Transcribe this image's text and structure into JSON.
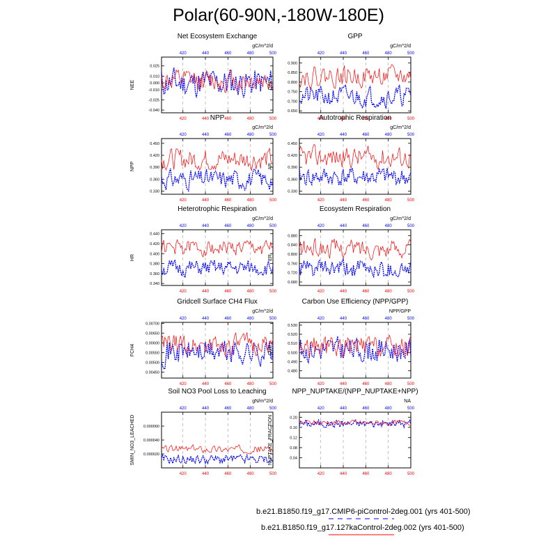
{
  "figure_title": "Polar(60-90N,-180W-180E)",
  "colors": {
    "case1": "#0000ff",
    "case2": "#ff0000",
    "grid": "#999999"
  },
  "legend": [
    {
      "label": "b.e21.B1850.f19_g17.CMIP6-piControl-2deg.001 (yrs 401-500)",
      "color": "#0000ff",
      "style": "dashed"
    },
    {
      "label": "b.e21.B1850.f19_g17.127kaControl-2deg.002 (yrs 401-500)",
      "color": "#ff0000",
      "style": "solid"
    }
  ],
  "chart_data": [
    {
      "type": "line",
      "title": "Net Ecosystem Exchange",
      "units": "gC/m^2/d",
      "ylabel": "NEE",
      "xlim": [
        401,
        500
      ],
      "ylim": [
        -0.044,
        0.038
      ],
      "yticks": [
        -0.04,
        -0.025,
        -0.01,
        0.0,
        0.01,
        0.025
      ],
      "ytick_labels": [
        "-0.040",
        "-0.025",
        "-0.010",
        "0.000",
        "0.010",
        "0.025"
      ],
      "xticks": [
        420,
        440,
        460,
        480,
        500
      ],
      "series": [
        {
          "name": "CMIP6-piControl",
          "mean": 0.0,
          "amp": 0.016,
          "seed": 11
        },
        {
          "name": "127kaControl",
          "mean": 0.003,
          "amp": 0.012,
          "seed": 12
        }
      ]
    },
    {
      "type": "line",
      "title": "GPP",
      "units": "gC/m^2/d",
      "ylabel": "GPP",
      "xlim": [
        401,
        500
      ],
      "ylim": [
        0.64,
        0.93
      ],
      "yticks": [
        0.65,
        0.7,
        0.75,
        0.8,
        0.85,
        0.9
      ],
      "ytick_labels": [
        "0.650",
        "0.700",
        "0.750",
        "0.800",
        "0.850",
        "0.900"
      ],
      "xticks": [
        420,
        440,
        460,
        480,
        500
      ],
      "series": [
        {
          "name": "CMIP6-piControl",
          "mean": 0.725,
          "amp": 0.04,
          "seed": 21
        },
        {
          "name": "127kaControl",
          "mean": 0.83,
          "amp": 0.04,
          "seed": 22
        }
      ]
    },
    {
      "type": "line",
      "title": "NPP",
      "units": "gC/m^2/d",
      "ylabel": "NPP",
      "xlim": [
        401,
        500
      ],
      "ylim": [
        0.322,
        0.462
      ],
      "yticks": [
        0.33,
        0.36,
        0.39,
        0.42,
        0.45
      ],
      "ytick_labels": [
        "0.330",
        "0.360",
        "0.390",
        "0.420",
        "0.450"
      ],
      "xticks": [
        420,
        440,
        460,
        480,
        500
      ],
      "series": [
        {
          "name": "CMIP6-piControl",
          "mean": 0.36,
          "amp": 0.018,
          "seed": 31
        },
        {
          "name": "127kaControl",
          "mean": 0.41,
          "amp": 0.02,
          "seed": 32
        }
      ]
    },
    {
      "type": "line",
      "title": "Autotrophic Respiration",
      "units": "gC/m^2/d",
      "ylabel": "AR",
      "xlim": [
        401,
        500
      ],
      "ylim": [
        0.322,
        0.462
      ],
      "yticks": [
        0.33,
        0.36,
        0.39,
        0.42,
        0.45
      ],
      "ytick_labels": [
        "0.330",
        "0.360",
        "0.390",
        "0.420",
        "0.450"
      ],
      "xticks": [
        420,
        440,
        460,
        480,
        500
      ],
      "series": [
        {
          "name": "CMIP6-piControl",
          "mean": 0.365,
          "amp": 0.018,
          "seed": 41
        },
        {
          "name": "127kaControl",
          "mean": 0.415,
          "amp": 0.02,
          "seed": 42
        }
      ]
    },
    {
      "type": "line",
      "title": "Heterotrophic Respiration",
      "units": "gC/m^2/d",
      "ylabel": "HR",
      "xlim": [
        401,
        500
      ],
      "ylim": [
        0.336,
        0.448
      ],
      "yticks": [
        0.34,
        0.36,
        0.38,
        0.4,
        0.42,
        0.44
      ],
      "ytick_labels": [
        "0.340",
        "0.360",
        "0.380",
        "0.400",
        "0.420",
        "0.440"
      ],
      "xticks": [
        420,
        440,
        460,
        480,
        500
      ],
      "series": [
        {
          "name": "CMIP6-piControl",
          "mean": 0.37,
          "amp": 0.012,
          "seed": 51
        },
        {
          "name": "127kaControl",
          "mean": 0.412,
          "amp": 0.012,
          "seed": 52
        }
      ]
    },
    {
      "type": "line",
      "title": "Ecosystem Respiration",
      "units": "gC/m^2/d",
      "ylabel": "ER",
      "xlim": [
        401,
        500
      ],
      "ylim": [
        0.665,
        0.905
      ],
      "yticks": [
        0.68,
        0.72,
        0.76,
        0.8,
        0.84,
        0.88
      ],
      "ytick_labels": [
        "0.680",
        "0.720",
        "0.760",
        "0.800",
        "0.840",
        "0.880"
      ],
      "xticks": [
        420,
        440,
        460,
        480,
        500
      ],
      "series": [
        {
          "name": "CMIP6-piControl",
          "mean": 0.735,
          "amp": 0.03,
          "seed": 61
        },
        {
          "name": "127kaControl",
          "mean": 0.825,
          "amp": 0.03,
          "seed": 62
        }
      ]
    },
    {
      "type": "line",
      "title": "Gridcell Surface CH4 Flux",
      "units": "gC/m^2/d",
      "ylabel": "FCH4",
      "xlim": [
        401,
        500
      ],
      "ylim": [
        0.0042,
        0.00705
      ],
      "yticks": [
        0.0045,
        0.005,
        0.0055,
        0.006,
        0.0065,
        0.007
      ],
      "ytick_labels": [
        "0.00450",
        "0.00500",
        "0.00550",
        "0.00600",
        "0.00650",
        "0.00700"
      ],
      "xticks": [
        420,
        440,
        460,
        480,
        500
      ],
      "series": [
        {
          "name": "CMIP6-piControl",
          "mean": 0.00555,
          "amp": 0.0005,
          "seed": 71
        },
        {
          "name": "127kaControl",
          "mean": 0.0059,
          "amp": 0.0004,
          "seed": 72
        }
      ]
    },
    {
      "type": "line",
      "title": "Carbon Use Efficiency (NPP/GPP)",
      "units": "NPP/GPP",
      "ylabel": "CUE",
      "xlim": [
        401,
        500
      ],
      "ylim": [
        0.472,
        0.533
      ],
      "yticks": [
        0.48,
        0.49,
        0.5,
        0.51,
        0.52,
        0.53
      ],
      "ytick_labels": [
        "0.480",
        "0.490",
        "0.500",
        "0.510",
        "0.520",
        "0.530"
      ],
      "xticks": [
        420,
        440,
        460,
        480,
        500
      ],
      "series": [
        {
          "name": "CMIP6-piControl",
          "mean": 0.503,
          "amp": 0.01,
          "seed": 81
        },
        {
          "name": "127kaControl",
          "mean": 0.506,
          "amp": 0.009,
          "seed": 82
        }
      ]
    },
    {
      "type": "line",
      "title": "Soil NO3 Pool Loss to Leaching",
      "units": "gN/m^2/d",
      "ylabel": "SMIN_NO3_LEACHED",
      "xlim": [
        401,
        500
      ],
      "ylim": [
        0.0,
        8e-05
      ],
      "yticks": [
        2e-05,
        4e-05,
        6e-05
      ],
      "ytick_labels": [
        "0.000020",
        "0.000040",
        "0.000060"
      ],
      "xticks": [
        420,
        440,
        460,
        480,
        500
      ],
      "series": [
        {
          "name": "CMIP6-piControl",
          "mean": 1.2e-05,
          "amp": 5e-06,
          "seed": 91
        },
        {
          "name": "127kaControl",
          "mean": 2.7e-05,
          "amp": 4e-06,
          "seed": 92
        }
      ]
    },
    {
      "type": "line",
      "title": "NPP_NUPTAKE/(NPP_NUPTAKE+NPP)",
      "units": "NA",
      "ylabel": "NUPTAKE_FRACTION",
      "xlim": [
        401,
        500
      ],
      "ylim": [
        0.0,
        0.22
      ],
      "yticks": [
        0.04,
        0.08,
        0.12,
        0.16,
        0.2
      ],
      "ytick_labels": [
        "0.04",
        "0.08",
        "0.12",
        "0.16",
        "0.20"
      ],
      "xticks": [
        420,
        440,
        460,
        480,
        500
      ],
      "series": [
        {
          "name": "CMIP6-piControl",
          "mean": 0.175,
          "amp": 0.012,
          "seed": 101
        },
        {
          "name": "127kaControl",
          "mean": 0.178,
          "amp": 0.008,
          "seed": 102
        }
      ]
    }
  ]
}
